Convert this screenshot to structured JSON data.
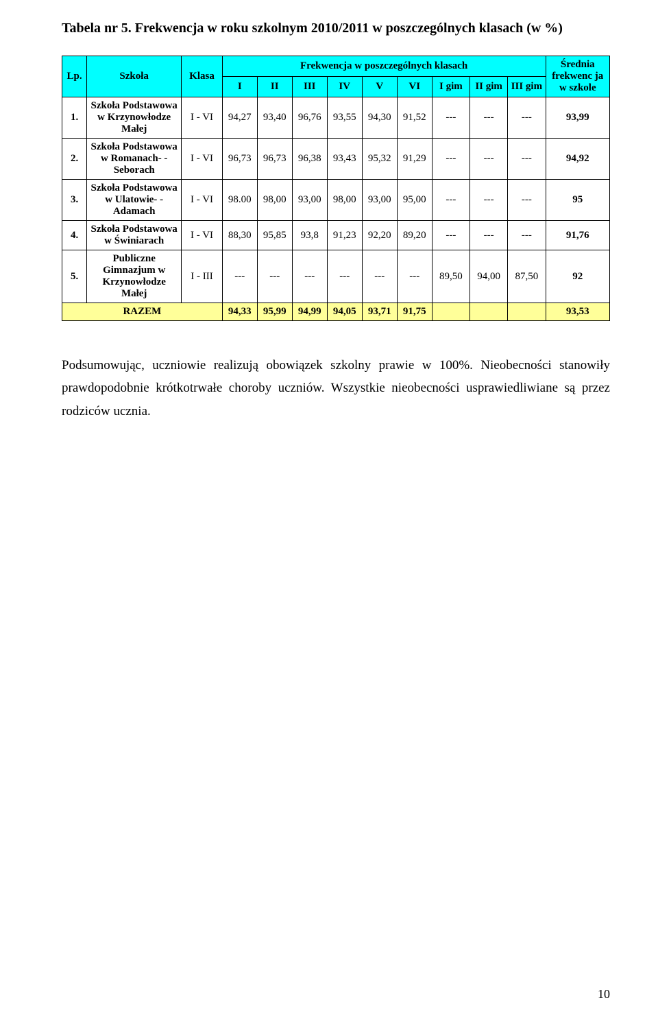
{
  "title": "Tabela nr 5. Frekwencja w roku szkolnym 2010/2011 w poszczególnych klasach (w %)",
  "header": {
    "lp": "Lp.",
    "szkola": "Szkoła",
    "klasa": "Klasa",
    "frekw": "Frekwencja w poszczególnych klasach",
    "avg": "Średnia frekwenc ja w szkole",
    "cols": {
      "c1": "I",
      "c2": "II",
      "c3": "III",
      "c4": "IV",
      "c5": "V",
      "c6": "VI",
      "c7": "I gim",
      "c8": "II gim",
      "c9": "III gim"
    }
  },
  "rows": [
    {
      "lp": "1.",
      "school": "Szkoła Podstawowa w Krzynowłodze Małej",
      "klasa": "I - VI",
      "v": [
        "94,27",
        "93,40",
        "96,76",
        "93,55",
        "94,30",
        "91,52",
        "---",
        "---",
        "---"
      ],
      "avg": "93,99"
    },
    {
      "lp": "2.",
      "school": "Szkoła Podstawowa w Romanach- -Seborach",
      "klasa": "I - VI",
      "v": [
        "96,73",
        "96,73",
        "96,38",
        "93,43",
        "95,32",
        "91,29",
        "---",
        "---",
        "---"
      ],
      "avg": "94,92"
    },
    {
      "lp": "3.",
      "school": "Szkoła Podstawowa w Ulatowie- -Adamach",
      "klasa": "I - VI",
      "v": [
        "98.00",
        "98,00",
        "93,00",
        "98,00",
        "93,00",
        "95,00",
        "---",
        "---",
        "---"
      ],
      "avg": "95"
    },
    {
      "lp": "4.",
      "school": "Szkoła Podstawowa w Świniarach",
      "klasa": "I - VI",
      "v": [
        "88,30",
        "95,85",
        "93,8",
        "91,23",
        "92,20",
        "89,20",
        "---",
        "---",
        "---"
      ],
      "avg": "91,76"
    },
    {
      "lp": "5.",
      "school": "Publiczne Gimnazjum w Krzynowłodze Małej",
      "klasa": "I - III",
      "v": [
        "---",
        "---",
        "---",
        "---",
        "---",
        "---",
        "89,50",
        "94,00",
        "87,50"
      ],
      "avg": "92"
    }
  ],
  "summary": {
    "label": "RAZEM",
    "v": [
      "94,33",
      "95,99",
      "94,99",
      "94,05",
      "93,71",
      "91,75",
      "",
      "",
      ""
    ],
    "avg": "93,53"
  },
  "paragraph": "Podsumowując, uczniowie realizują obowiązek szkolny prawie w 100%. Nieobecności stanowiły prawdopodobnie krótkotrwałe choroby uczniów. Wszystkie nieobecności usprawiedliwiane są przez rodziców ucznia.",
  "page_number": "10",
  "colors": {
    "header_bg": "#00ffff",
    "summary_bg": "#ffff99",
    "text": "#000000",
    "page_bg": "#ffffff",
    "border": "#000000"
  }
}
